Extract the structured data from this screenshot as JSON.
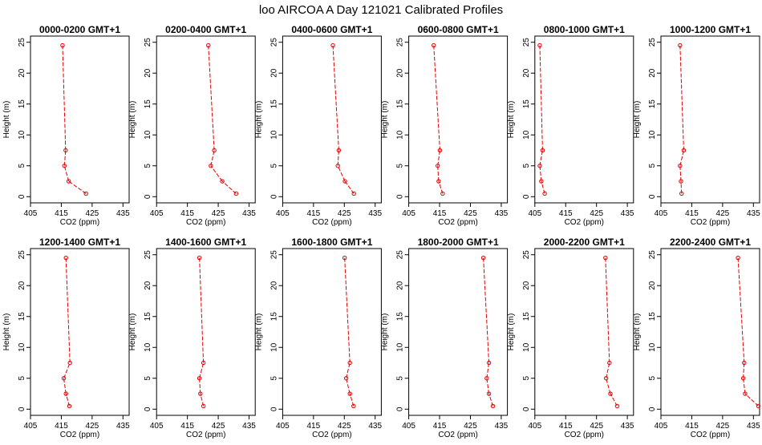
{
  "title": "loo AIRCOA A  Day 121021  Calibrated Profiles",
  "chart_data": {
    "type": "line",
    "xlabel": "CO2 (ppm)",
    "ylabel": "Height (m)",
    "xlim": [
      405,
      437
    ],
    "ylim": [
      -1,
      26
    ],
    "xticks": [
      405,
      415,
      425,
      435
    ],
    "yticks": [
      0,
      5,
      10,
      15,
      20,
      25
    ],
    "colors": {
      "series": "#e00000",
      "frame": "#000000"
    },
    "panels": [
      {
        "title": "0000-0200 GMT+1",
        "points": [
          [
            423.0,
            0.5
          ],
          [
            417.4,
            2.5
          ],
          [
            416.0,
            5.0
          ],
          [
            416.4,
            7.5
          ],
          [
            415.4,
            24.5
          ]
        ]
      },
      {
        "title": "0200-0400 GMT+1",
        "points": [
          [
            430.8,
            0.5
          ],
          [
            426.3,
            2.5
          ],
          [
            422.6,
            5.0
          ],
          [
            423.7,
            7.5
          ],
          [
            421.8,
            24.5
          ]
        ]
      },
      {
        "title": "0400-0600 GMT+1",
        "points": [
          [
            428.1,
            0.5
          ],
          [
            425.2,
            2.5
          ],
          [
            422.9,
            5.0
          ],
          [
            423.2,
            7.5
          ],
          [
            421.3,
            24.5
          ]
        ]
      },
      {
        "title": "0600-0800 GMT+1",
        "points": [
          [
            416.0,
            0.5
          ],
          [
            414.7,
            2.5
          ],
          [
            414.4,
            5.0
          ],
          [
            415.1,
            7.5
          ],
          [
            413.1,
            24.5
          ]
        ]
      },
      {
        "title": "0800-1000 GMT+1",
        "points": [
          [
            408.2,
            0.5
          ],
          [
            407.1,
            2.5
          ],
          [
            406.6,
            5.0
          ],
          [
            407.5,
            7.5
          ],
          [
            406.6,
            24.5
          ]
        ]
      },
      {
        "title": "1000-1200 GMT+1",
        "points": [
          [
            411.7,
            0.5
          ],
          [
            411.5,
            2.5
          ],
          [
            411.2,
            5.0
          ],
          [
            412.4,
            7.5
          ],
          [
            411.2,
            24.5
          ]
        ]
      },
      {
        "title": "1200-1400 GMT+1",
        "points": [
          [
            417.6,
            0.5
          ],
          [
            416.5,
            2.5
          ],
          [
            415.8,
            5.0
          ],
          [
            417.8,
            7.5
          ],
          [
            416.5,
            24.5
          ]
        ]
      },
      {
        "title": "1400-1600 GMT+1",
        "points": [
          [
            420.2,
            0.5
          ],
          [
            419.2,
            2.5
          ],
          [
            418.9,
            5.0
          ],
          [
            420.2,
            7.5
          ],
          [
            418.9,
            24.5
          ]
        ]
      },
      {
        "title": "1600-1800 GMT+1",
        "points": [
          [
            428.0,
            0.5
          ],
          [
            426.8,
            2.5
          ],
          [
            425.6,
            5.0
          ],
          [
            426.8,
            7.5
          ],
          [
            425.1,
            24.5
          ]
        ]
      },
      {
        "title": "1800-2000 GMT+1",
        "points": [
          [
            432.3,
            0.5
          ],
          [
            431.0,
            2.5
          ],
          [
            430.3,
            5.0
          ],
          [
            431.0,
            7.5
          ],
          [
            429.2,
            24.5
          ]
        ]
      },
      {
        "title": "2000-2200 GMT+1",
        "points": [
          [
            431.7,
            0.5
          ],
          [
            429.5,
            2.5
          ],
          [
            428.1,
            5.0
          ],
          [
            429.2,
            7.5
          ],
          [
            427.9,
            24.5
          ]
        ]
      },
      {
        "title": "2200-2400 GMT+1",
        "points": [
          [
            436.6,
            0.5
          ],
          [
            432.3,
            2.5
          ],
          [
            431.7,
            5.0
          ],
          [
            432.0,
            7.5
          ],
          [
            430.0,
            24.5
          ]
        ]
      }
    ]
  }
}
